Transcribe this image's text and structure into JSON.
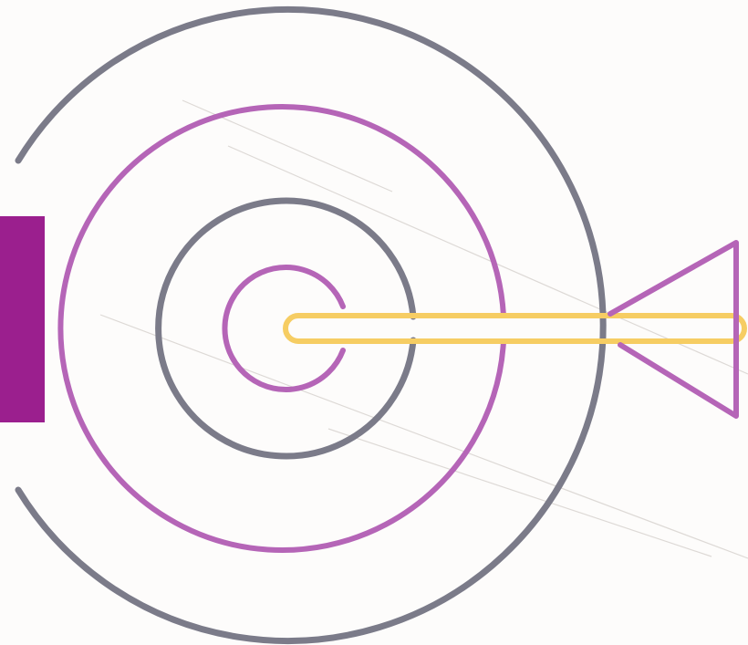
{
  "colors": {
    "background": "#fdfcfb",
    "ring_gray": "#7b7b89",
    "ring_purple": "#b565b7",
    "side_bar": "#9b1f8e",
    "arrow_shaft": "#f6cd63",
    "arrow_fletching": "#b565b7",
    "texture_line": "#c9c3be"
  },
  "icons": {
    "target": "target-icon",
    "arrow": "arrow-icon"
  }
}
